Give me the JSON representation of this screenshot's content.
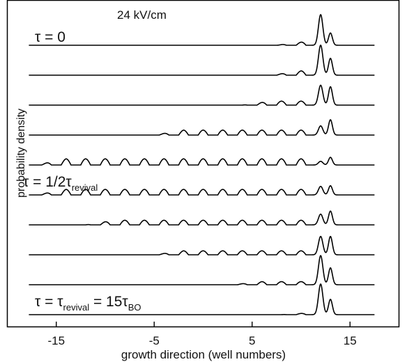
{
  "chart_data": {
    "type": "line",
    "title": "24 kV/cm",
    "xlabel": "growth direction (well numbers)",
    "ylabel": "probability density",
    "xlim": [
      -20,
      20
    ],
    "x_ticks": [
      -15,
      -5,
      5,
      15
    ],
    "x_tick_labels": [
      "-15",
      "-5",
      "5",
      "15"
    ],
    "grid": false,
    "legend": "none",
    "annotations": [
      {
        "panel": 0,
        "text": "τ = 0"
      },
      {
        "panel": 4,
        "text": "τ = 1/2τrevival",
        "main": "τ = 1/2τ",
        "sub": "revival"
      },
      {
        "panel": 9,
        "text": "τ = τrevival = 15τBO",
        "main1": "τ = τ",
        "sub1": "revival",
        "main2": " = 15τ",
        "sub2": "BO"
      }
    ],
    "series": [
      {
        "peak_well_12": 1.0,
        "peak_well_13": 0.4,
        "wiggle_amplitude": 0.12,
        "wiggle_start": 7.5
      },
      {
        "peak_well_12": 0.98,
        "peak_well_13": 0.55,
        "wiggle_amplitude": 0.14,
        "wiggle_start": 7.0
      },
      {
        "peak_well_12": 0.65,
        "peak_well_13": 0.6,
        "wiggle_amplitude": 0.13,
        "wiggle_start": 4.0
      },
      {
        "peak_well_12": 0.3,
        "peak_well_13": 0.5,
        "wiggle_amplitude": 0.16,
        "wiggle_start": -5.0
      },
      {
        "peak_well_12": 0.12,
        "peak_well_13": 0.25,
        "wiggle_amplitude": 0.2,
        "wiggle_start": -17.0
      },
      {
        "peak_well_12": 0.28,
        "peak_well_13": 0.3,
        "wiggle_amplitude": 0.18,
        "wiggle_start": -17.0
      },
      {
        "peak_well_12": 0.35,
        "peak_well_13": 0.45,
        "wiggle_amplitude": 0.15,
        "wiggle_start": -12.0
      },
      {
        "peak_well_12": 0.6,
        "peak_well_13": 0.6,
        "wiggle_amplitude": 0.13,
        "wiggle_start": -5.0
      },
      {
        "peak_well_12": 0.95,
        "peak_well_13": 0.55,
        "wiggle_amplitude": 0.1,
        "wiggle_start": 3.0
      },
      {
        "peak_well_12": 1.0,
        "peak_well_13": 0.5,
        "wiggle_amplitude": 0.06,
        "wiggle_start": 8.0
      }
    ]
  }
}
